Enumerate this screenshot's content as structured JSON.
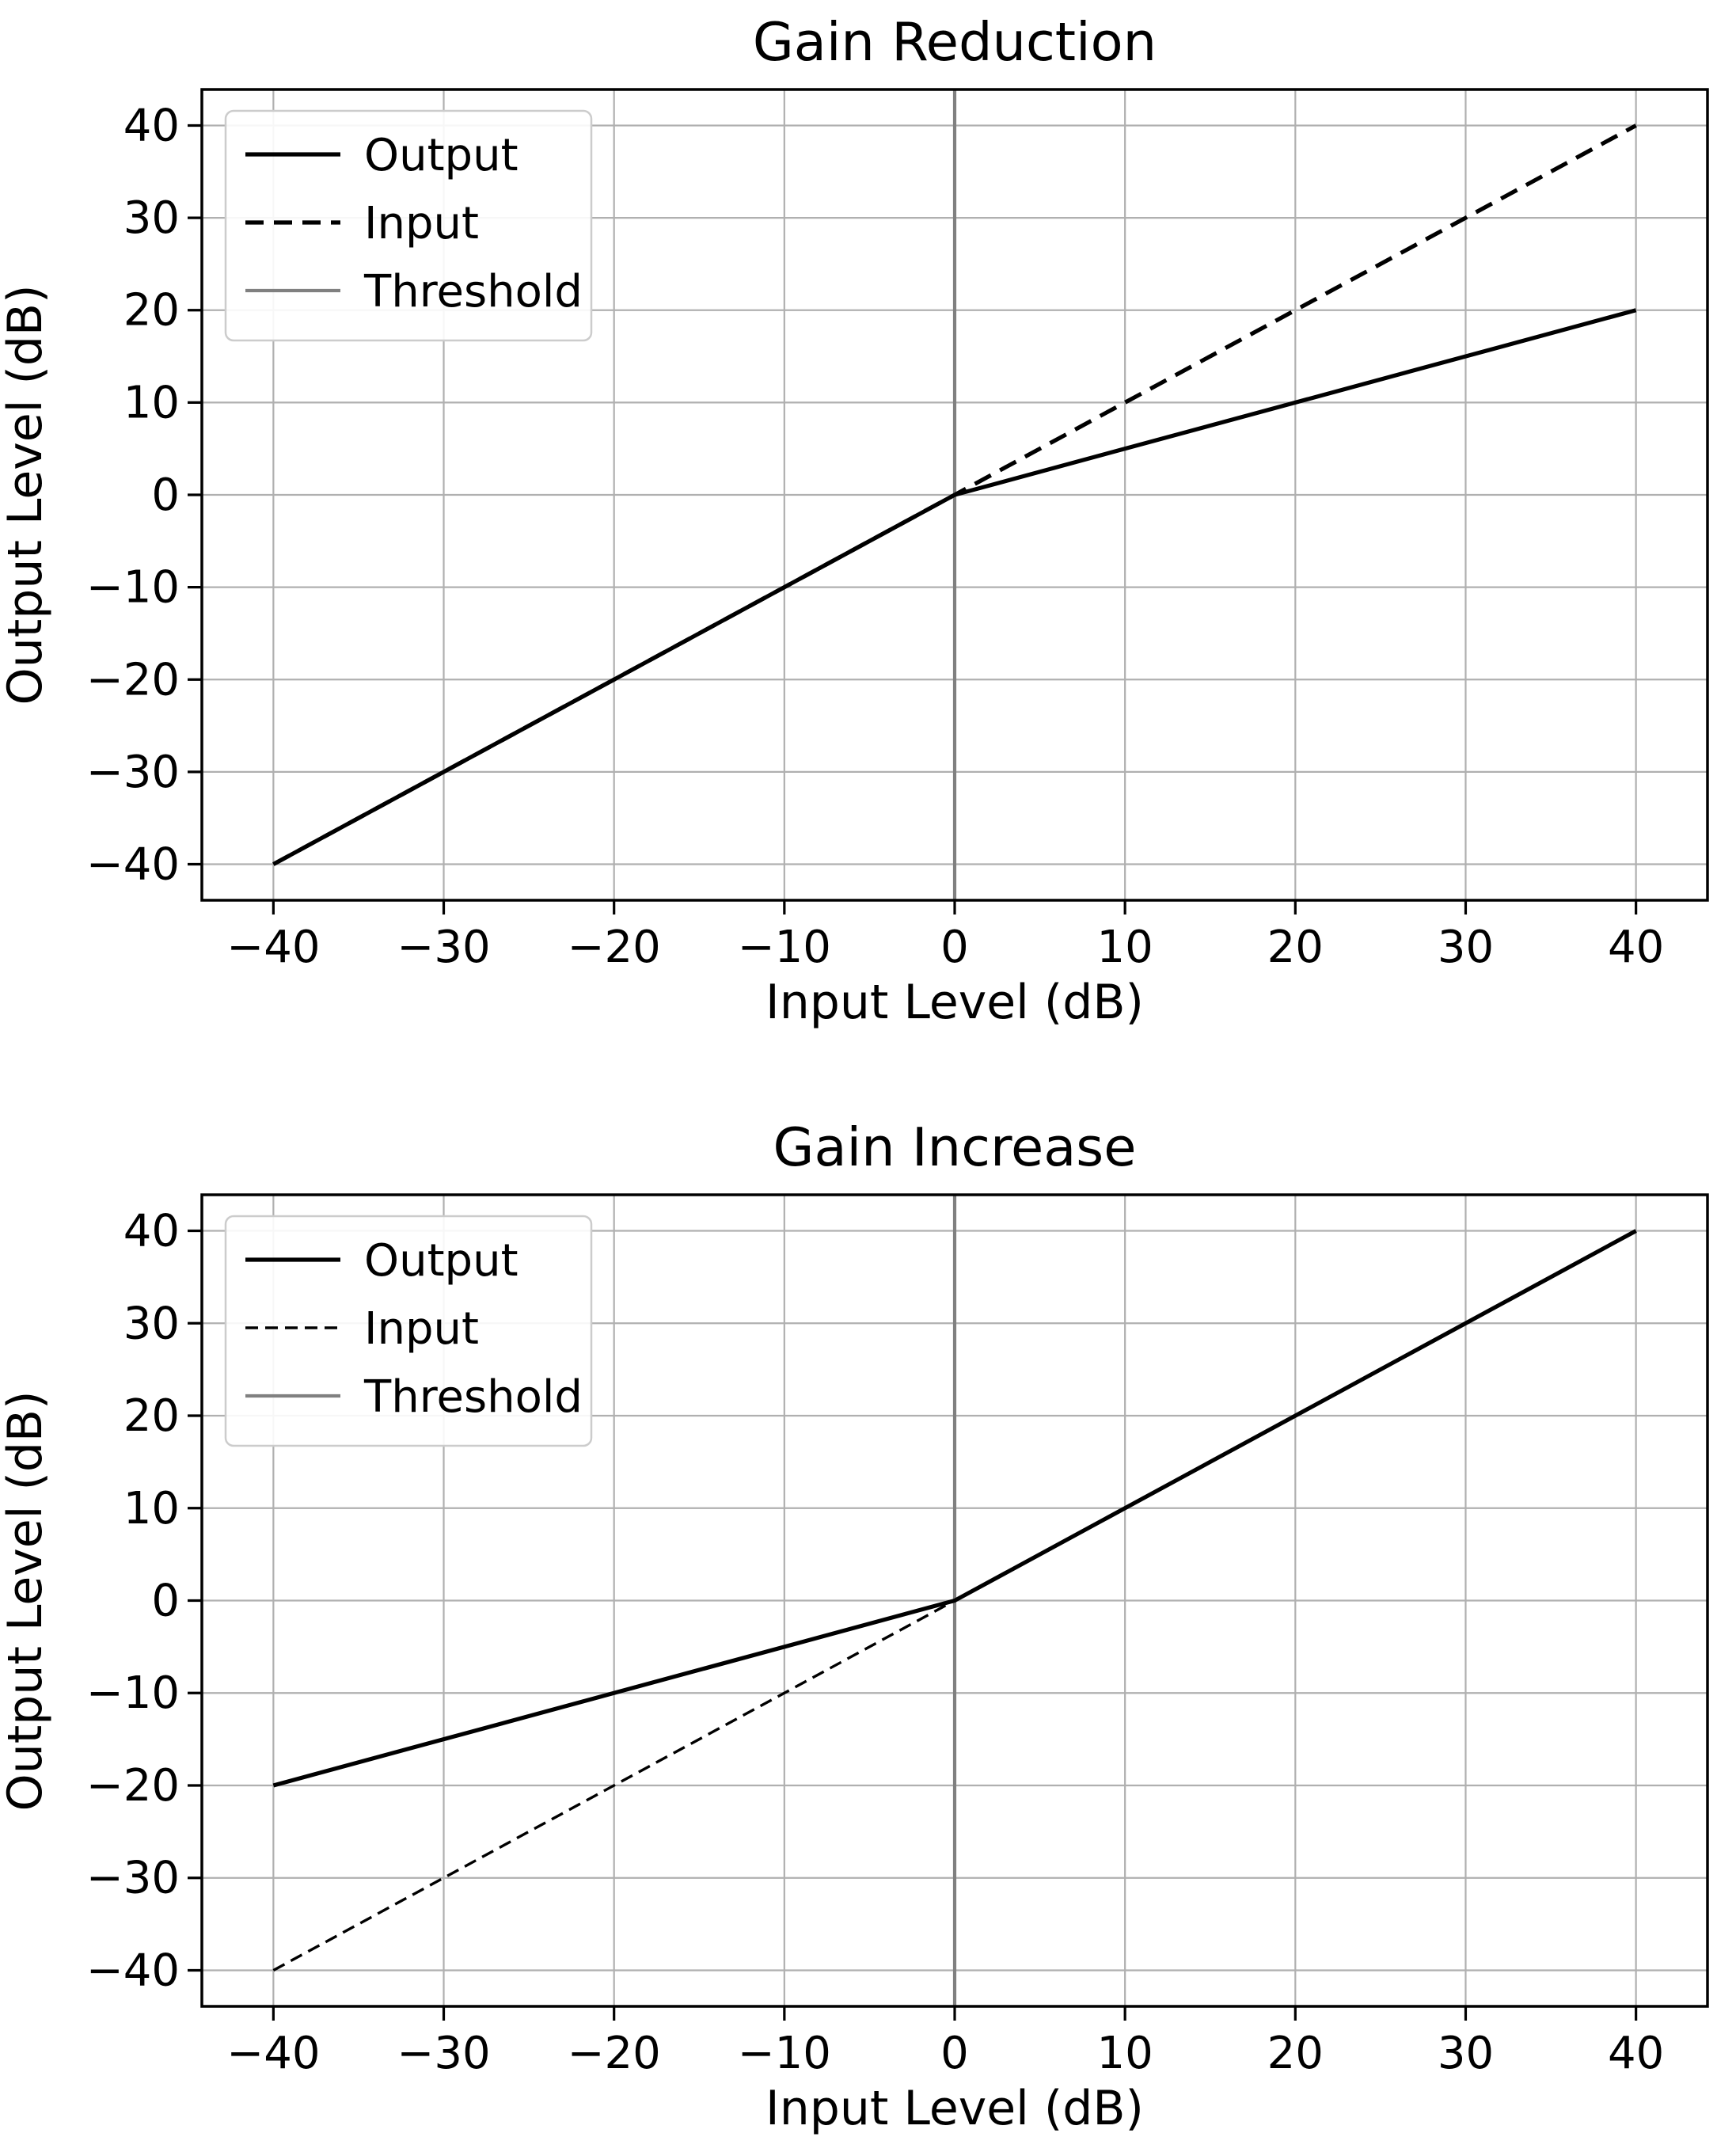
{
  "figure": {
    "background": "#ffffff",
    "num_charts": 2
  },
  "colors": {
    "line": "#000000",
    "threshold": "#808080",
    "grid": "#b0b0b0",
    "spine": "#000000",
    "legend_border": "#cccccc",
    "legend_background": "#ffffff",
    "text": "#000000"
  },
  "chart_data": [
    {
      "type": "line",
      "title": "Gain Reduction",
      "xlabel": "Input Level (dB)",
      "ylabel": "Output Level (dB)",
      "xlim": [
        -44.2,
        44.2
      ],
      "ylim": [
        -43.9,
        43.9
      ],
      "xtick_values": [
        -40,
        -30,
        -20,
        -10,
        0,
        10,
        20,
        30,
        40
      ],
      "xtick_labels": [
        "−40",
        "−30",
        "−20",
        "−10",
        "0",
        "10",
        "20",
        "30",
        "40"
      ],
      "ytick_values": [
        -40,
        -30,
        -20,
        -10,
        0,
        10,
        20,
        30,
        40
      ],
      "ytick_labels": [
        "−40",
        "−30",
        "−20",
        "−10",
        "0",
        "10",
        "20",
        "30",
        "40"
      ],
      "grid": true,
      "legend": {
        "position": "upper-left",
        "entries": [
          "Output",
          "Input",
          "Threshold"
        ]
      },
      "series": [
        {
          "name": "Output",
          "color": "#000000",
          "linestyle": "solid",
          "linewidth": "thick",
          "points": [
            [
              -40,
              -40
            ],
            [
              0,
              0
            ],
            [
              40,
              20
            ]
          ]
        },
        {
          "name": "Input",
          "color": "#000000",
          "linestyle": "dashed",
          "linewidth": "thick",
          "points": [
            [
              -40,
              -40
            ],
            [
              0,
              0
            ],
            [
              40,
              40
            ]
          ]
        },
        {
          "name": "Threshold",
          "color": "#808080",
          "linestyle": "solid",
          "linewidth": "medium",
          "vline_x": 0
        }
      ]
    },
    {
      "type": "line",
      "title": "Gain Increase",
      "xlabel": "Input Level (dB)",
      "ylabel": "Output Level (dB)",
      "xlim": [
        -44.2,
        44.2
      ],
      "ylim": [
        -43.9,
        43.9
      ],
      "xtick_values": [
        -40,
        -30,
        -20,
        -10,
        0,
        10,
        20,
        30,
        40
      ],
      "xtick_labels": [
        "−40",
        "−30",
        "−20",
        "−10",
        "0",
        "10",
        "20",
        "30",
        "40"
      ],
      "ytick_values": [
        -40,
        -30,
        -20,
        -10,
        0,
        10,
        20,
        30,
        40
      ],
      "ytick_labels": [
        "−40",
        "−30",
        "−20",
        "−10",
        "0",
        "10",
        "20",
        "30",
        "40"
      ],
      "grid": true,
      "legend": {
        "position": "upper-left",
        "entries": [
          "Output",
          "Input",
          "Threshold"
        ]
      },
      "series": [
        {
          "name": "Output",
          "color": "#000000",
          "linestyle": "solid",
          "linewidth": "thick",
          "points": [
            [
              -40,
              -20
            ],
            [
              0,
              0
            ],
            [
              40,
              40
            ]
          ]
        },
        {
          "name": "Input",
          "color": "#000000",
          "linestyle": "dashed",
          "linewidth": "thin",
          "points": [
            [
              -40,
              -40
            ],
            [
              0,
              0
            ],
            [
              40,
              40
            ]
          ]
        },
        {
          "name": "Threshold",
          "color": "#808080",
          "linestyle": "solid",
          "linewidth": "medium",
          "vline_x": 0
        }
      ]
    }
  ]
}
